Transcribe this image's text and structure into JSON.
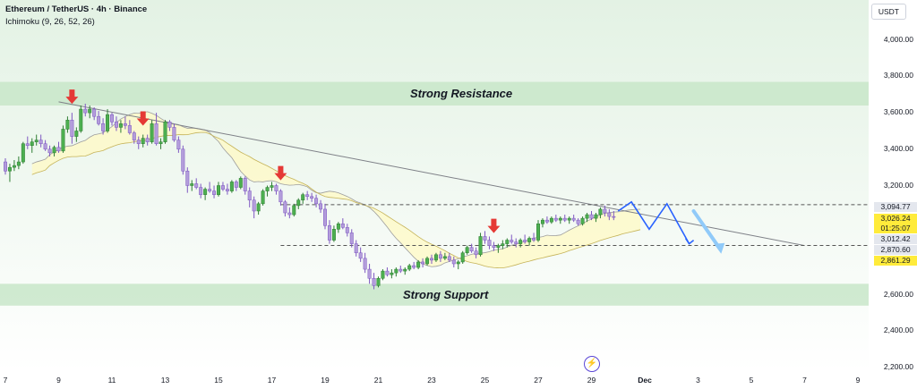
{
  "header": {
    "symbol": "Ethereum / TetherUS · 4h · Binance",
    "indicator": "Ichimoku (9, 26, 52, 26)"
  },
  "currency_button": "USDT",
  "zones": {
    "resistance_label": "Strong Resistance",
    "support_label": "Strong Support",
    "resistance_range": [
      3640,
      3770
    ],
    "support_range": [
      2540,
      2660
    ]
  },
  "price_tags": [
    {
      "value": 3094.77,
      "text": "3,094.77",
      "bg": "#e4e7ee",
      "fg": "#131722"
    },
    {
      "value": 3026.24,
      "text": "3,026.24",
      "bg": "#ffeb3b",
      "fg": "#131722"
    },
    {
      "value": 3000.0,
      "text": "01:25:07",
      "bg": "#ffeb3b",
      "fg": "#131722"
    },
    {
      "value": 3012.42,
      "text": "3,012.42",
      "bg": "#e4e7ee",
      "fg": "#131722"
    },
    {
      "value": 2870.6,
      "text": "2,870.60",
      "bg": "#e4e7ee",
      "fg": "#131722"
    },
    {
      "value": 2861.29,
      "text": "2,861.29",
      "bg": "#ffeb3b",
      "fg": "#131722"
    }
  ],
  "colors": {
    "up": "#4caf50",
    "down": "#b39ddb",
    "zone": "#c8e6c9",
    "arrow": "#e53935",
    "projection": "#2962ff",
    "cloud_bull": "#fff9c4",
    "cloud_bear": "#cfd8dc"
  },
  "chart_data": {
    "type": "candlestick",
    "title": "Ethereum / TetherUS · 4h · Binance",
    "ylim": [
      2180,
      4220
    ],
    "y_ticks": [
      "4,000.00",
      "3,800.00",
      "3,600.00",
      "3,400.00",
      "3,200.00",
      "2,600.00",
      "2,400.00",
      "2,200.00"
    ],
    "y_tick_values": [
      4000,
      3800,
      3600,
      3400,
      3200,
      2600,
      2400,
      2200
    ],
    "x_ticks": [
      "7",
      "9",
      "11",
      "13",
      "15",
      "17",
      "19",
      "21",
      "23",
      "25",
      "27",
      "29",
      "Dec",
      "3",
      "5",
      "7",
      "9"
    ],
    "x_tick_index": [
      0,
      12,
      24,
      36,
      48,
      60,
      72,
      84,
      96,
      108,
      120,
      132,
      144,
      156,
      168,
      180,
      192
    ],
    "candles": [
      [
        3330,
        3350,
        3260,
        3280
      ],
      [
        3280,
        3320,
        3220,
        3300
      ],
      [
        3300,
        3340,
        3280,
        3310
      ],
      [
        3310,
        3360,
        3290,
        3330
      ],
      [
        3330,
        3440,
        3320,
        3430
      ],
      [
        3430,
        3470,
        3400,
        3420
      ],
      [
        3420,
        3460,
        3380,
        3440
      ],
      [
        3440,
        3480,
        3420,
        3450
      ],
      [
        3450,
        3480,
        3410,
        3430
      ],
      [
        3430,
        3450,
        3390,
        3400
      ],
      [
        3400,
        3420,
        3360,
        3380
      ],
      [
        3380,
        3420,
        3360,
        3410
      ],
      [
        3410,
        3440,
        3380,
        3390
      ],
      [
        3390,
        3530,
        3380,
        3510
      ],
      [
        3510,
        3580,
        3490,
        3560
      ],
      [
        3560,
        3600,
        3430,
        3470
      ],
      [
        3470,
        3520,
        3440,
        3500
      ],
      [
        3500,
        3640,
        3490,
        3620
      ],
      [
        3620,
        3650,
        3580,
        3600
      ],
      [
        3600,
        3640,
        3570,
        3620
      ],
      [
        3620,
        3630,
        3560,
        3580
      ],
      [
        3580,
        3610,
        3530,
        3540
      ],
      [
        3540,
        3570,
        3480,
        3500
      ],
      [
        3500,
        3620,
        3490,
        3590
      ],
      [
        3590,
        3600,
        3530,
        3550
      ],
      [
        3550,
        3580,
        3500,
        3520
      ],
      [
        3520,
        3560,
        3490,
        3540
      ],
      [
        3540,
        3580,
        3510,
        3530
      ],
      [
        3530,
        3560,
        3480,
        3490
      ],
      [
        3490,
        3500,
        3430,
        3450
      ],
      [
        3450,
        3470,
        3400,
        3430
      ],
      [
        3430,
        3480,
        3410,
        3460
      ],
      [
        3460,
        3480,
        3420,
        3440
      ],
      [
        3440,
        3560,
        3430,
        3540
      ],
      [
        3540,
        3600,
        3420,
        3430
      ],
      [
        3430,
        3460,
        3400,
        3440
      ],
      [
        3440,
        3560,
        3430,
        3550
      ],
      [
        3550,
        3560,
        3500,
        3520
      ],
      [
        3520,
        3540,
        3440,
        3450
      ],
      [
        3450,
        3470,
        3380,
        3400
      ],
      [
        3400,
        3420,
        3260,
        3280
      ],
      [
        3280,
        3300,
        3160,
        3200
      ],
      [
        3200,
        3230,
        3170,
        3210
      ],
      [
        3210,
        3240,
        3180,
        3190
      ],
      [
        3190,
        3210,
        3130,
        3150
      ],
      [
        3150,
        3190,
        3120,
        3180
      ],
      [
        3180,
        3220,
        3160,
        3170
      ],
      [
        3170,
        3200,
        3130,
        3150
      ],
      [
        3150,
        3220,
        3140,
        3200
      ],
      [
        3200,
        3220,
        3170,
        3180
      ],
      [
        3180,
        3210,
        3150,
        3170
      ],
      [
        3170,
        3230,
        3160,
        3220
      ],
      [
        3220,
        3230,
        3170,
        3190
      ],
      [
        3190,
        3250,
        3180,
        3240
      ],
      [
        3240,
        3250,
        3150,
        3170
      ],
      [
        3170,
        3190,
        3080,
        3120
      ],
      [
        3120,
        3140,
        3020,
        3060
      ],
      [
        3060,
        3110,
        3040,
        3100
      ],
      [
        3100,
        3180,
        3090,
        3170
      ],
      [
        3170,
        3200,
        3140,
        3190
      ],
      [
        3190,
        3220,
        3170,
        3200
      ],
      [
        3200,
        3210,
        3150,
        3170
      ],
      [
        3170,
        3180,
        3090,
        3110
      ],
      [
        3110,
        3120,
        3030,
        3050
      ],
      [
        3050,
        3080,
        3020,
        3040
      ],
      [
        3040,
        3100,
        3030,
        3090
      ],
      [
        3090,
        3130,
        3070,
        3120
      ],
      [
        3120,
        3160,
        3100,
        3150
      ],
      [
        3150,
        3170,
        3120,
        3140
      ],
      [
        3140,
        3160,
        3110,
        3130
      ],
      [
        3130,
        3150,
        3080,
        3100
      ],
      [
        3100,
        3120,
        3050,
        3070
      ],
      [
        3070,
        3100,
        2960,
        2980
      ],
      [
        2980,
        3010,
        2880,
        2900
      ],
      [
        2900,
        2980,
        2890,
        2960
      ],
      [
        2960,
        3000,
        2940,
        2990
      ],
      [
        2990,
        3020,
        2960,
        2970
      ],
      [
        2970,
        2990,
        2920,
        2940
      ],
      [
        2940,
        2960,
        2860,
        2880
      ],
      [
        2880,
        2900,
        2810,
        2830
      ],
      [
        2830,
        2860,
        2780,
        2800
      ],
      [
        2800,
        2830,
        2720,
        2740
      ],
      [
        2740,
        2770,
        2660,
        2690
      ],
      [
        2690,
        2720,
        2630,
        2650
      ],
      [
        2650,
        2700,
        2640,
        2690
      ],
      [
        2690,
        2740,
        2680,
        2730
      ],
      [
        2730,
        2750,
        2700,
        2710
      ],
      [
        2710,
        2740,
        2690,
        2720
      ],
      [
        2720,
        2750,
        2700,
        2740
      ],
      [
        2740,
        2760,
        2720,
        2730
      ],
      [
        2730,
        2750,
        2710,
        2740
      ],
      [
        2740,
        2770,
        2730,
        2760
      ],
      [
        2760,
        2780,
        2740,
        2750
      ],
      [
        2750,
        2790,
        2740,
        2780
      ],
      [
        2780,
        2800,
        2750,
        2770
      ],
      [
        2770,
        2810,
        2760,
        2800
      ],
      [
        2800,
        2820,
        2770,
        2790
      ],
      [
        2790,
        2830,
        2780,
        2820
      ],
      [
        2820,
        2840,
        2780,
        2800
      ],
      [
        2800,
        2830,
        2790,
        2810
      ],
      [
        2810,
        2830,
        2780,
        2790
      ],
      [
        2790,
        2810,
        2750,
        2770
      ],
      [
        2770,
        2790,
        2740,
        2780
      ],
      [
        2780,
        2840,
        2770,
        2830
      ],
      [
        2830,
        2870,
        2820,
        2860
      ],
      [
        2860,
        2880,
        2830,
        2840
      ],
      [
        2840,
        2860,
        2800,
        2820
      ],
      [
        2820,
        2940,
        2810,
        2920
      ],
      [
        2920,
        2950,
        2880,
        2900
      ],
      [
        2900,
        2920,
        2850,
        2870
      ],
      [
        2870,
        2890,
        2840,
        2860
      ],
      [
        2860,
        2880,
        2830,
        2870
      ],
      [
        2870,
        2900,
        2850,
        2880
      ],
      [
        2880,
        2910,
        2860,
        2900
      ],
      [
        2900,
        2930,
        2880,
        2890
      ],
      [
        2890,
        2910,
        2860,
        2880
      ],
      [
        2880,
        2910,
        2860,
        2900
      ],
      [
        2900,
        2930,
        2880,
        2890
      ],
      [
        2890,
        2920,
        2870,
        2910
      ],
      [
        2910,
        2940,
        2890,
        2900
      ],
      [
        2900,
        3010,
        2890,
        2990
      ],
      [
        2990,
        3020,
        2970,
        3010
      ],
      [
        3010,
        3030,
        2990,
        3000
      ],
      [
        3000,
        3030,
        2990,
        3020
      ],
      [
        3020,
        3040,
        3000,
        3010
      ],
      [
        3010,
        3030,
        2990,
        3020
      ],
      [
        3020,
        3040,
        3000,
        3010
      ],
      [
        3010,
        3030,
        2990,
        3020
      ],
      [
        3020,
        3040,
        3000,
        3010
      ],
      [
        3010,
        3020,
        2980,
        2990
      ],
      [
        2990,
        3030,
        2980,
        3020
      ],
      [
        3020,
        3050,
        3000,
        3040
      ],
      [
        3040,
        3060,
        3010,
        3020
      ],
      [
        3020,
        3050,
        3000,
        3040
      ],
      [
        3040,
        3080,
        3020,
        3070
      ],
      [
        3070,
        3090,
        3030,
        3050
      ],
      [
        3050,
        3070,
        3010,
        3030
      ],
      [
        3030,
        3060,
        3010,
        3026
      ]
    ],
    "trendline": {
      "from": [
        12,
        3660
      ],
      "to": [
        180,
        2870
      ]
    },
    "dashed_levels": [
      3094.77,
      2870.6
    ],
    "markers_down_arrow_candle_index": [
      15,
      31,
      62,
      110
    ],
    "projection_path": [
      [
        138,
        3060
      ],
      [
        141,
        3110
      ],
      [
        145,
        2960
      ],
      [
        149,
        3100
      ],
      [
        154,
        2880
      ]
    ],
    "projection_arrow": [
      [
        155,
        3060
      ],
      [
        161,
        2850
      ]
    ]
  }
}
